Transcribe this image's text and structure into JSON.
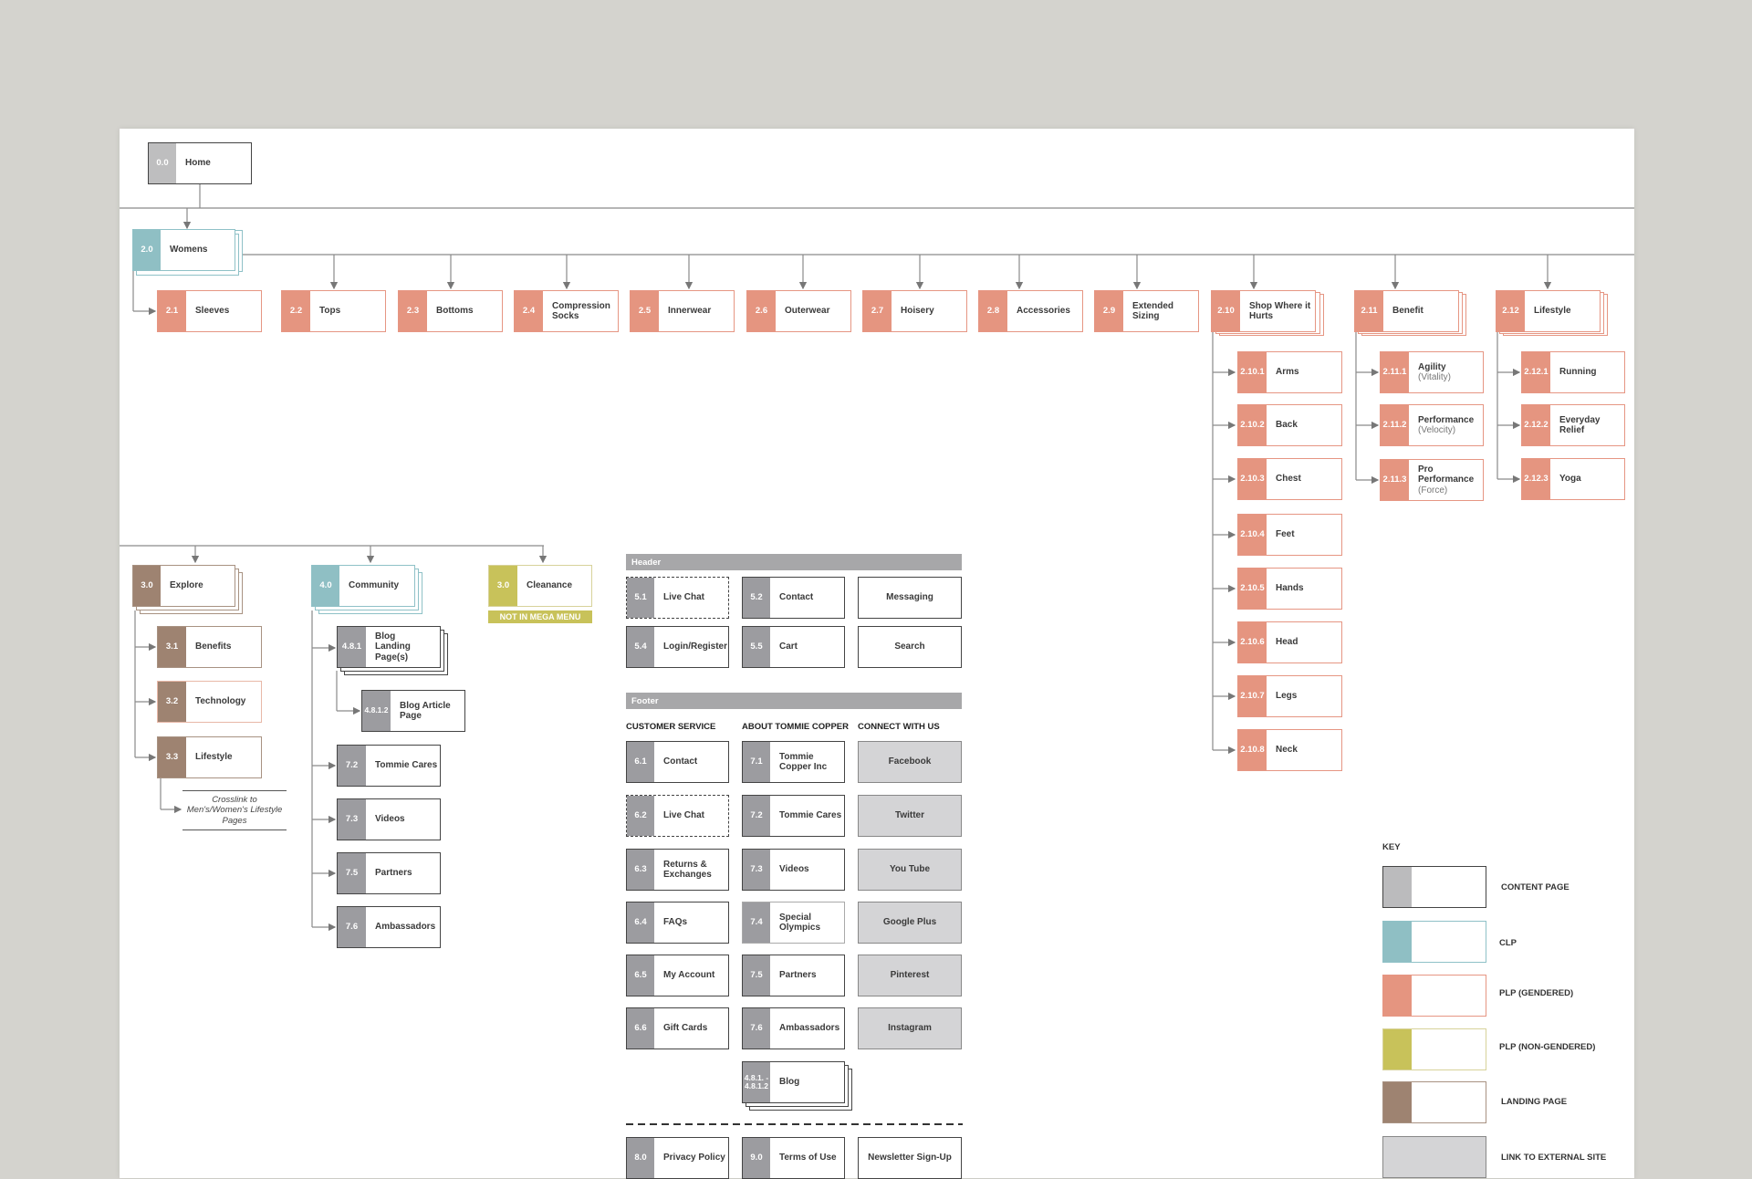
{
  "diagram": {
    "home": {
      "num": "0.0",
      "label": "Home"
    },
    "womens": {
      "num": "2.0",
      "label": "Womens"
    },
    "plp_row": [
      {
        "num": "2.1",
        "label": "Sleeves"
      },
      {
        "num": "2.2",
        "label": "Tops"
      },
      {
        "num": "2.3",
        "label": "Bottoms"
      },
      {
        "num": "2.4",
        "label": "Compression Socks"
      },
      {
        "num": "2.5",
        "label": "Innerwear"
      },
      {
        "num": "2.6",
        "label": "Outerwear"
      },
      {
        "num": "2.7",
        "label": "Hoisery"
      },
      {
        "num": "2.8",
        "label": "Accessories"
      },
      {
        "num": "2.9",
        "label": "Extended Sizing"
      },
      {
        "num": "2.10",
        "label": "Shop Where it Hurts"
      },
      {
        "num": "2.11",
        "label": "Benefit"
      },
      {
        "num": "2.12",
        "label": "Lifestyle"
      }
    ],
    "hurts_children": [
      {
        "num": "2.10.1",
        "label": "Arms"
      },
      {
        "num": "2.10.2",
        "label": "Back"
      },
      {
        "num": "2.10.3",
        "label": "Chest"
      },
      {
        "num": "2.10.4",
        "label": "Feet"
      },
      {
        "num": "2.10.5",
        "label": "Hands"
      },
      {
        "num": "2.10.6",
        "label": "Head"
      },
      {
        "num": "2.10.7",
        "label": "Legs"
      },
      {
        "num": "2.10.8",
        "label": "Neck"
      }
    ],
    "benefit_children": [
      {
        "num": "2.11.1",
        "label": "Agility",
        "sub": "(Vitality)"
      },
      {
        "num": "2.11.2",
        "label": "Performance",
        "sub": "(Velocity)"
      },
      {
        "num": "2.11.3",
        "label": "Pro Performance",
        "sub": "(Force)"
      }
    ],
    "lifestyle_children": [
      {
        "num": "2.12.1",
        "label": "Running"
      },
      {
        "num": "2.12.2",
        "label": "Everyday Relief"
      },
      {
        "num": "2.12.3",
        "label": "Yoga"
      }
    ],
    "explore": {
      "num": "3.0",
      "label": "Explore"
    },
    "explore_children": [
      {
        "num": "3.1",
        "label": "Benefits"
      },
      {
        "num": "3.2",
        "label": "Technology"
      },
      {
        "num": "3.3",
        "label": "Lifestyle"
      }
    ],
    "crosslink_note": "Crosslink to Men's/Women's Lifestyle Pages",
    "community": {
      "num": "4.0",
      "label": "Community"
    },
    "blog_landing": {
      "num": "4.8.1",
      "label": "Blog Landing Page(s)"
    },
    "blog_article": {
      "num": "4.8.1.2",
      "label": "Blog Article Page"
    },
    "community_children": [
      {
        "num": "7.2",
        "label": "Tommie Cares"
      },
      {
        "num": "7.3",
        "label": "Videos"
      },
      {
        "num": "7.5",
        "label": "Partners"
      },
      {
        "num": "7.6",
        "label": "Ambassadors"
      }
    ],
    "clearance": {
      "num": "3.0",
      "label": "Cleanance",
      "badge": "NOT IN MEGA MENU"
    }
  },
  "header_section": {
    "title": "Header",
    "items": [
      {
        "num": "5.1",
        "label": "Live Chat"
      },
      {
        "num": "5.2",
        "label": "Contact"
      },
      {
        "label": "Messaging"
      },
      {
        "num": "5.4",
        "label": "Login/Register"
      },
      {
        "num": "5.5",
        "label": "Cart"
      },
      {
        "label": "Search"
      }
    ]
  },
  "footer_section": {
    "title": "Footer",
    "columns": [
      "CUSTOMER SERVICE",
      "ABOUT TOMMIE COPPER",
      "CONNECT WITH US"
    ],
    "customer_service": [
      {
        "num": "6.1",
        "label": "Contact"
      },
      {
        "num": "6.2",
        "label": "Live Chat"
      },
      {
        "num": "6.3",
        "label": "Returns & Exchanges"
      },
      {
        "num": "6.4",
        "label": "FAQs"
      },
      {
        "num": "6.5",
        "label": "My Account"
      },
      {
        "num": "6.6",
        "label": "Gift Cards"
      }
    ],
    "about": [
      {
        "num": "7.1",
        "label": "Tommie Copper Inc"
      },
      {
        "num": "7.2",
        "label": "Tommie Cares"
      },
      {
        "num": "7.3",
        "label": "Videos"
      },
      {
        "num": "7.4",
        "label": "Special Olympics"
      },
      {
        "num": "7.5",
        "label": "Partners"
      },
      {
        "num": "7.6",
        "label": "Ambassadors"
      },
      {
        "num": "4.8.1. - 4.8.1.2",
        "label": "Blog"
      }
    ],
    "connect": [
      "Facebook",
      "Twitter",
      "You Tube",
      "Google Plus",
      "Pinterest",
      "Instagram"
    ],
    "legal": [
      {
        "num": "8.0",
        "label": "Privacy Policy"
      },
      {
        "num": "9.0",
        "label": "Terms of Use"
      },
      {
        "label": "Newsletter Sign-Up"
      }
    ]
  },
  "key": {
    "title": "KEY",
    "items": [
      {
        "label": "CONTENT PAGE",
        "border": "#444444",
        "swatch": "#bbbbbd",
        "fill": "#ffffff"
      },
      {
        "label": "CLP",
        "border": "#8fc1c7",
        "swatch": "#8fbfc4",
        "fill": "#ffffff"
      },
      {
        "label": "PLP (GENDERED)",
        "border": "#e69683",
        "swatch": "#e59580",
        "fill": "#ffffff"
      },
      {
        "label": "PLP (NON-GENDERED)",
        "border": "#d7d29a",
        "swatch": "#c8c25a",
        "fill": "#ffffff"
      },
      {
        "label": "LANDING PAGE",
        "border": "#a89282",
        "swatch": "#9e8371",
        "fill": "#ffffff"
      },
      {
        "label": "LINK TO EXTERNAL SITE",
        "border": "#888888",
        "swatch": "#d4d4d6",
        "fill": "#d4d4d6"
      }
    ]
  }
}
